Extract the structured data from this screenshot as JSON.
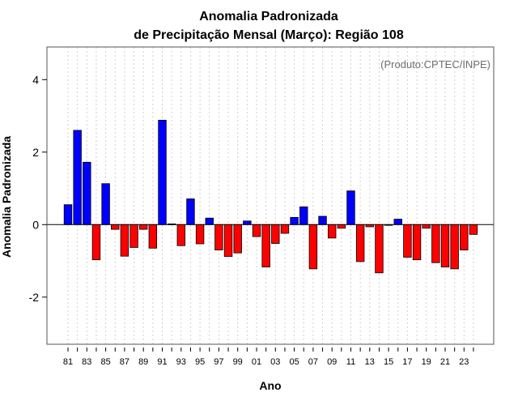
{
  "chart_data": {
    "type": "bar",
    "title": "Anomalia Padronizada",
    "subtitle": "de Precipitação Mensal (Março): Região 108",
    "xlabel": "Ano",
    "ylabel": "Anomalia Padronizada",
    "annotation": "(Produto:CPTEC/INPE)",
    "ylim": [
      -3.3,
      4.9
    ],
    "yticks": [
      -2,
      0,
      2,
      4
    ],
    "ytick_labels": [
      "-2",
      "0",
      "2",
      "4"
    ],
    "grid": "vertical dotted",
    "positive_color": "#0000ff",
    "negative_color": "#ff0000",
    "categories": [
      "1981",
      "1982",
      "1983",
      "1984",
      "1985",
      "1986",
      "1987",
      "1988",
      "1989",
      "1990",
      "1991",
      "1992",
      "1993",
      "1994",
      "1995",
      "1996",
      "1997",
      "1998",
      "1999",
      "2000",
      "2001",
      "2002",
      "2003",
      "2004",
      "2005",
      "2006",
      "2007",
      "2008",
      "2009",
      "2010",
      "2011",
      "2012",
      "2013",
      "2014",
      "2015",
      "2016",
      "2017",
      "2018",
      "2019",
      "2020",
      "2021",
      "2022",
      "2023",
      "2024"
    ],
    "xtick_labels": [
      "81",
      "83",
      "85",
      "87",
      "89",
      "91",
      "93",
      "95",
      "97",
      "99",
      "01",
      "03",
      "05",
      "07",
      "09",
      "11",
      "13",
      "15",
      "17",
      "19",
      "21",
      "23"
    ],
    "values": [
      0.55,
      2.6,
      1.72,
      -0.97,
      1.13,
      -0.13,
      -0.87,
      -0.63,
      -0.13,
      -0.65,
      2.88,
      0.02,
      -0.58,
      0.71,
      -0.53,
      0.18,
      -0.7,
      -0.88,
      -0.78,
      0.1,
      -0.33,
      -1.17,
      -0.52,
      -0.24,
      0.2,
      0.49,
      -1.22,
      0.23,
      -0.37,
      -0.1,
      0.93,
      -1.02,
      -0.06,
      -1.33,
      -0.02,
      0.15,
      -0.9,
      -0.97,
      -0.1,
      -1.05,
      -1.17,
      -1.22,
      -0.7,
      -0.27
    ]
  }
}
